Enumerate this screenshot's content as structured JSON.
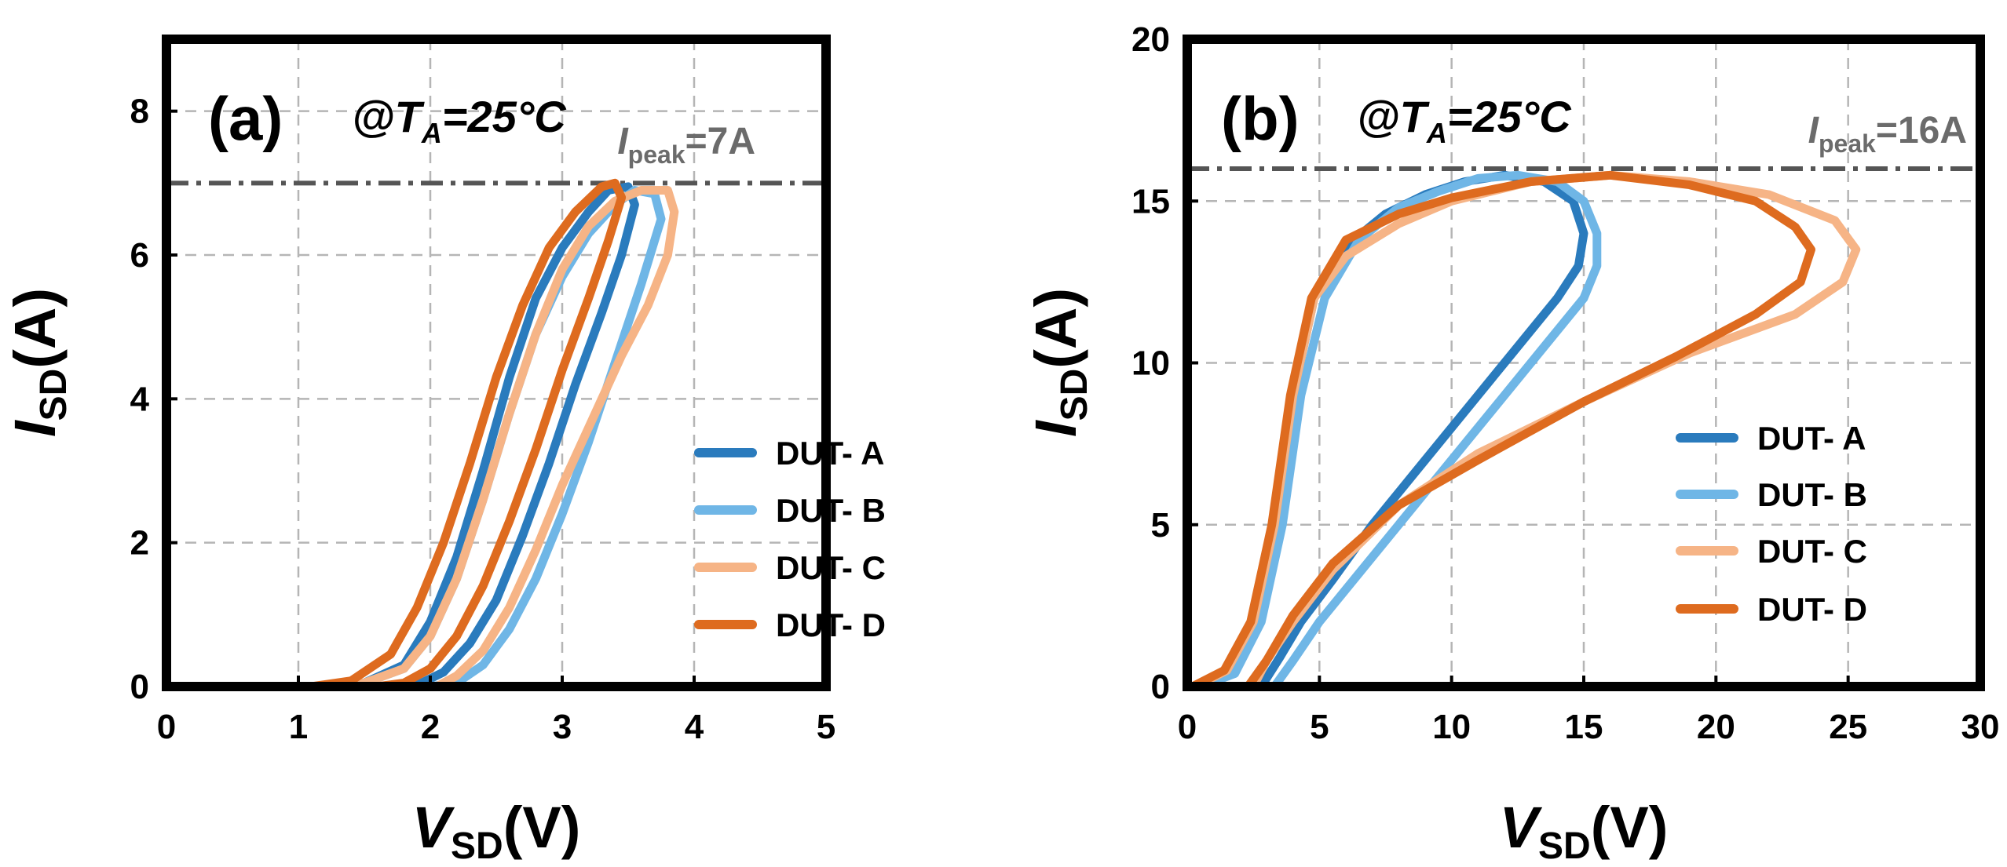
{
  "chart_data": [
    {
      "type": "line",
      "panel_label": "(a)",
      "condition": {
        "prefix": "@",
        "var": "T",
        "sub": "A",
        "value": "=25°C"
      },
      "peak_label": {
        "var": "I",
        "sub": "peak",
        "value": "=7A"
      },
      "peak_value": 7,
      "xlabel": {
        "var": "V",
        "sub": "SD",
        "unit": "(V)"
      },
      "ylabel": {
        "var": "I",
        "sub": "SD",
        "unit": "(A)"
      },
      "xlim": [
        0,
        5
      ],
      "ylim": [
        0,
        9
      ],
      "xticks": [
        "0",
        "1",
        "2",
        "3",
        "4",
        "5"
      ],
      "yticks": [
        "0",
        "2",
        "4",
        "6",
        "8"
      ],
      "xtick_values": [
        0,
        1,
        2,
        3,
        4,
        5
      ],
      "ytick_values": [
        0,
        2,
        4,
        6,
        8
      ],
      "grid": true,
      "legend_position": "lower-right",
      "series": [
        {
          "name": "DUT- A",
          "color": "#2a7bbd",
          "points": [
            [
              1.1,
              0
            ],
            [
              1.5,
              0.05
            ],
            [
              1.8,
              0.3
            ],
            [
              2.0,
              0.9
            ],
            [
              2.2,
              1.8
            ],
            [
              2.4,
              3.0
            ],
            [
              2.6,
              4.3
            ],
            [
              2.8,
              5.4
            ],
            [
              3.0,
              6.1
            ],
            [
              3.2,
              6.6
            ],
            [
              3.35,
              6.9
            ],
            [
              3.5,
              6.95
            ],
            [
              3.55,
              6.7
            ],
            [
              3.45,
              6.0
            ],
            [
              3.3,
              5.2
            ],
            [
              3.1,
              4.2
            ],
            [
              2.9,
              3.1
            ],
            [
              2.7,
              2.1
            ],
            [
              2.5,
              1.2
            ],
            [
              2.3,
              0.6
            ],
            [
              2.1,
              0.2
            ],
            [
              1.9,
              0.02
            ],
            [
              1.7,
              0
            ]
          ]
        },
        {
          "name": "DUT- B",
          "color": "#6fb6e6",
          "points": [
            [
              1.1,
              0
            ],
            [
              1.5,
              0.05
            ],
            [
              1.8,
              0.25
            ],
            [
              2.0,
              0.7
            ],
            [
              2.2,
              1.5
            ],
            [
              2.4,
              2.6
            ],
            [
              2.6,
              3.8
            ],
            [
              2.8,
              4.9
            ],
            [
              3.0,
              5.7
            ],
            [
              3.2,
              6.3
            ],
            [
              3.4,
              6.7
            ],
            [
              3.55,
              6.9
            ],
            [
              3.7,
              6.85
            ],
            [
              3.75,
              6.5
            ],
            [
              3.6,
              5.6
            ],
            [
              3.4,
              4.5
            ],
            [
              3.2,
              3.4
            ],
            [
              3.0,
              2.4
            ],
            [
              2.8,
              1.5
            ],
            [
              2.6,
              0.8
            ],
            [
              2.4,
              0.3
            ],
            [
              2.2,
              0.05
            ],
            [
              2.0,
              0
            ]
          ]
        },
        {
          "name": "DUT- C",
          "color": "#f6b486",
          "points": [
            [
              1.1,
              0
            ],
            [
              1.5,
              0.05
            ],
            [
              1.8,
              0.25
            ],
            [
              2.0,
              0.7
            ],
            [
              2.2,
              1.5
            ],
            [
              2.4,
              2.6
            ],
            [
              2.6,
              3.8
            ],
            [
              2.8,
              4.9
            ],
            [
              3.0,
              5.8
            ],
            [
              3.2,
              6.4
            ],
            [
              3.4,
              6.75
            ],
            [
              3.6,
              6.9
            ],
            [
              3.8,
              6.9
            ],
            [
              3.85,
              6.6
            ],
            [
              3.8,
              6.0
            ],
            [
              3.65,
              5.3
            ],
            [
              3.45,
              4.6
            ],
            [
              3.2,
              3.6
            ],
            [
              3.0,
              2.8
            ],
            [
              2.8,
              1.9
            ],
            [
              2.6,
              1.1
            ],
            [
              2.4,
              0.5
            ],
            [
              2.2,
              0.15
            ],
            [
              2.05,
              0
            ]
          ]
        },
        {
          "name": "DUT- D",
          "color": "#de6b1f",
          "points": [
            [
              1.1,
              0
            ],
            [
              1.4,
              0.08
            ],
            [
              1.7,
              0.45
            ],
            [
              1.9,
              1.1
            ],
            [
              2.1,
              2.0
            ],
            [
              2.3,
              3.1
            ],
            [
              2.5,
              4.3
            ],
            [
              2.7,
              5.3
            ],
            [
              2.9,
              6.1
            ],
            [
              3.1,
              6.6
            ],
            [
              3.3,
              6.95
            ],
            [
              3.4,
              7.0
            ],
            [
              3.45,
              6.8
            ],
            [
              3.35,
              6.2
            ],
            [
              3.2,
              5.4
            ],
            [
              3.0,
              4.4
            ],
            [
              2.8,
              3.3
            ],
            [
              2.6,
              2.3
            ],
            [
              2.4,
              1.4
            ],
            [
              2.2,
              0.7
            ],
            [
              2.0,
              0.25
            ],
            [
              1.8,
              0.05
            ],
            [
              1.6,
              0
            ]
          ]
        }
      ]
    },
    {
      "type": "line",
      "panel_label": "(b)",
      "condition": {
        "prefix": "@",
        "var": "T",
        "sub": "A",
        "value": "=25°C"
      },
      "peak_label": {
        "var": "I",
        "sub": "peak",
        "value": "=16A"
      },
      "peak_value": 16,
      "xlabel": {
        "var": "V",
        "sub": "SD",
        "unit": "(V)"
      },
      "ylabel": {
        "var": "I",
        "sub": "SD",
        "unit": "(A)"
      },
      "xlim": [
        0,
        30
      ],
      "ylim": [
        0,
        20
      ],
      "xticks": [
        "0",
        "5",
        "10",
        "15",
        "20",
        "25",
        "30"
      ],
      "yticks": [
        "0",
        "5",
        "10",
        "15",
        "20"
      ],
      "xtick_values": [
        0,
        5,
        10,
        15,
        20,
        25,
        30
      ],
      "ytick_values": [
        0,
        5,
        10,
        15,
        20
      ],
      "grid": true,
      "legend_position": "lower-right",
      "series": [
        {
          "name": "DUT- A",
          "color": "#2a7bbd",
          "points": [
            [
              0.3,
              0
            ],
            [
              1.5,
              0.5
            ],
            [
              2.5,
              2
            ],
            [
              3.3,
              5
            ],
            [
              4,
              9
            ],
            [
              4.8,
              12
            ],
            [
              6,
              13.6
            ],
            [
              7.5,
              14.6
            ],
            [
              9,
              15.2
            ],
            [
              10.5,
              15.6
            ],
            [
              12,
              15.8
            ],
            [
              13.5,
              15.6
            ],
            [
              14.6,
              15
            ],
            [
              15,
              14
            ],
            [
              14.8,
              13
            ],
            [
              14,
              12
            ],
            [
              12,
              10
            ],
            [
              10,
              8
            ],
            [
              8.5,
              6.5
            ],
            [
              7,
              5
            ],
            [
              5.5,
              3.3
            ],
            [
              4.3,
              2
            ],
            [
              3.5,
              0.9
            ],
            [
              2.8,
              0
            ]
          ]
        },
        {
          "name": "DUT- B",
          "color": "#6fb6e6",
          "points": [
            [
              0.5,
              0
            ],
            [
              1.8,
              0.4
            ],
            [
              2.8,
              2
            ],
            [
              3.6,
              5
            ],
            [
              4.3,
              9
            ],
            [
              5.2,
              12
            ],
            [
              6.5,
              13.8
            ],
            [
              8,
              14.8
            ],
            [
              9.5,
              15.3
            ],
            [
              11,
              15.7
            ],
            [
              12.5,
              15.8
            ],
            [
              14,
              15.6
            ],
            [
              15,
              15
            ],
            [
              15.5,
              14
            ],
            [
              15.5,
              13
            ],
            [
              15,
              12
            ],
            [
              13.5,
              10.5
            ],
            [
              11.5,
              8.5
            ],
            [
              9.5,
              6.5
            ],
            [
              8,
              5
            ],
            [
              6.5,
              3.5
            ],
            [
              5,
              2
            ],
            [
              4,
              0.8
            ],
            [
              3.3,
              0
            ]
          ]
        },
        {
          "name": "DUT- C",
          "color": "#f6b486",
          "points": [
            [
              0.3,
              0
            ],
            [
              1.5,
              0.5
            ],
            [
              2.5,
              2
            ],
            [
              3.3,
              5
            ],
            [
              4,
              9
            ],
            [
              4.8,
              12
            ],
            [
              6,
              13.3
            ],
            [
              8,
              14.3
            ],
            [
              10,
              15
            ],
            [
              13,
              15.6
            ],
            [
              16,
              15.8
            ],
            [
              19,
              15.6
            ],
            [
              22,
              15.2
            ],
            [
              24.5,
              14.4
            ],
            [
              25.3,
              13.5
            ],
            [
              24.8,
              12.5
            ],
            [
              23,
              11.5
            ],
            [
              19,
              10.3
            ],
            [
              15,
              8.8
            ],
            [
              11,
              7.2
            ],
            [
              8,
              5.6
            ],
            [
              5.5,
              3.6
            ],
            [
              4,
              2
            ],
            [
              3,
              0.8
            ],
            [
              2.5,
              0
            ]
          ]
        },
        {
          "name": "DUT- D",
          "color": "#de6b1f",
          "points": [
            [
              0.2,
              0
            ],
            [
              1.4,
              0.5
            ],
            [
              2.4,
              2
            ],
            [
              3.2,
              5
            ],
            [
              3.9,
              9
            ],
            [
              4.7,
              12
            ],
            [
              6,
              13.8
            ],
            [
              8,
              14.6
            ],
            [
              10,
              15.1
            ],
            [
              13,
              15.6
            ],
            [
              16,
              15.8
            ],
            [
              19,
              15.5
            ],
            [
              21.5,
              15
            ],
            [
              23,
              14.2
            ],
            [
              23.6,
              13.5
            ],
            [
              23.2,
              12.5
            ],
            [
              21.5,
              11.5
            ],
            [
              18.5,
              10.2
            ],
            [
              15,
              8.8
            ],
            [
              11,
              7
            ],
            [
              8,
              5.6
            ],
            [
              5.5,
              3.8
            ],
            [
              4,
              2.2
            ],
            [
              3,
              0.8
            ],
            [
              2.3,
              0
            ]
          ]
        }
      ]
    }
  ]
}
